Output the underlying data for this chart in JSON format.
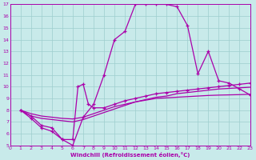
{
  "xlabel": "Windchill (Refroidissement éolien,°C)",
  "xlim": [
    0,
    23
  ],
  "ylim": [
    5,
    17
  ],
  "xticks": [
    0,
    1,
    2,
    3,
    4,
    5,
    6,
    7,
    8,
    9,
    10,
    11,
    12,
    13,
    14,
    15,
    16,
    17,
    18,
    19,
    20,
    21,
    22,
    23
  ],
  "yticks": [
    5,
    6,
    7,
    8,
    9,
    10,
    11,
    12,
    13,
    14,
    15,
    16,
    17
  ],
  "bg_color": "#c8eaea",
  "line_color": "#aa00aa",
  "grid_color": "#9ecece",
  "line_main_x": [
    1,
    2,
    3,
    4,
    5,
    6,
    7,
    8,
    9,
    10,
    11,
    12,
    13,
    14,
    15,
    16,
    17,
    18,
    19,
    20,
    21,
    22,
    23
  ],
  "line_main_y": [
    8.0,
    7.5,
    6.7,
    6.5,
    5.5,
    5.0,
    7.4,
    8.5,
    11.0,
    14.0,
    14.7,
    17.0,
    17.0,
    17.0,
    17.0,
    16.8,
    15.2,
    11.1,
    13.0,
    10.5,
    10.3,
    9.8,
    9.3
  ],
  "line_a_x": [
    1,
    2,
    3,
    4,
    5,
    6,
    6.5,
    7,
    7.5,
    8,
    9,
    10,
    11,
    12,
    13,
    14,
    15,
    16,
    17,
    18,
    19,
    20,
    21,
    22,
    23
  ],
  "line_a_y": [
    8.0,
    7.3,
    6.5,
    6.2,
    5.5,
    5.5,
    10.0,
    10.2,
    8.5,
    8.2,
    8.2,
    8.5,
    8.8,
    9.0,
    9.2,
    9.4,
    9.5,
    9.6,
    9.7,
    9.8,
    9.9,
    10.0,
    10.1,
    10.2,
    10.3
  ],
  "line_b_x": [
    1,
    2,
    3,
    4,
    5,
    6,
    7,
    8,
    9,
    10,
    11,
    12,
    13,
    14,
    15,
    16,
    17,
    18,
    19,
    20,
    21,
    22,
    23
  ],
  "line_b_y": [
    8.0,
    7.5,
    7.3,
    7.2,
    7.1,
    7.0,
    7.2,
    7.5,
    7.8,
    8.1,
    8.4,
    8.7,
    8.9,
    9.1,
    9.2,
    9.4,
    9.5,
    9.6,
    9.7,
    9.8,
    9.85,
    9.9,
    9.95
  ],
  "line_c_x": [
    1,
    2,
    3,
    4,
    5,
    6,
    7,
    8,
    9,
    10,
    11,
    12,
    13,
    14,
    15,
    16,
    17,
    18,
    19,
    20,
    21,
    22,
    23
  ],
  "line_c_y": [
    8.0,
    7.7,
    7.5,
    7.4,
    7.3,
    7.25,
    7.4,
    7.7,
    8.0,
    8.3,
    8.5,
    8.7,
    8.85,
    9.0,
    9.05,
    9.1,
    9.15,
    9.2,
    9.25,
    9.28,
    9.3,
    9.32,
    9.35
  ]
}
